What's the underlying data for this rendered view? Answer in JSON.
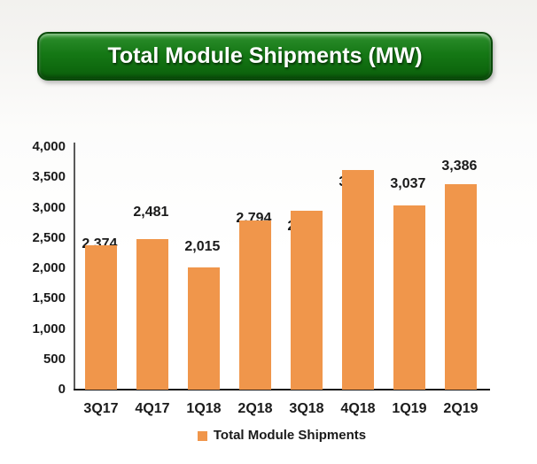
{
  "banner": {
    "title": "Total Module Shipments (MW)",
    "background_color": "#157815",
    "border_color": "#0a4a0a",
    "text_color": "#ffffff"
  },
  "chart_data": {
    "type": "bar",
    "title": "Total Module Shipments (MW)",
    "categories": [
      "3Q17",
      "4Q17",
      "1Q18",
      "2Q18",
      "3Q18",
      "4Q18",
      "1Q19",
      "2Q19"
    ],
    "values": [
      2374,
      2481,
      2015,
      2794,
      2953,
      3618,
      3037,
      3386
    ],
    "display_values": [
      "2,374",
      "2,481",
      "2,015",
      "2,794",
      "2,953",
      "3,618",
      "3,037",
      "3,386"
    ],
    "series_name": "Total Module Shipments",
    "xlabel": "",
    "ylabel": "",
    "ylim": [
      0,
      4000
    ],
    "y_tick_step": 500,
    "y_ticks": [
      "4,000",
      "3,500",
      "3,000",
      "2,500",
      "2,000",
      "1,500",
      "1,000",
      "500",
      "0"
    ],
    "bar_color": "#F0964B",
    "label_color": "#1a1a1a",
    "grid": false,
    "legend_position": "bottom"
  },
  "legend": {
    "label": "Total Module Shipments",
    "marker_color": "#F0964B"
  }
}
